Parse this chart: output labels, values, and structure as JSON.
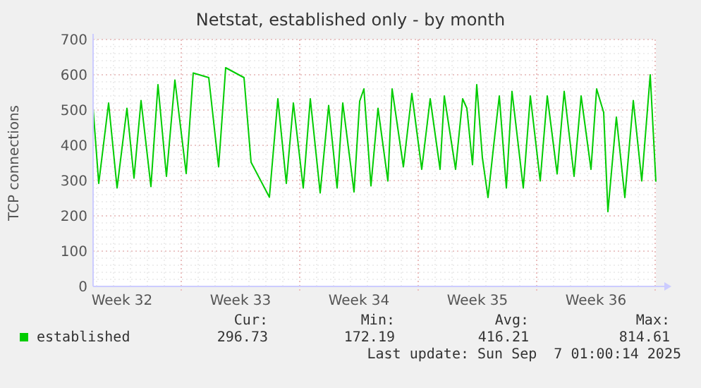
{
  "chart_data": {
    "type": "line",
    "title": "Netstat, established only - by month",
    "ylabel": "TCP connections",
    "x": [
      "2025-08-04T19:00",
      "2025-08-05T03:00",
      "2025-08-05T17:00",
      "2025-08-06T05:00",
      "2025-08-06T19:00",
      "2025-08-07T05:00",
      "2025-08-07T15:00",
      "2025-08-08T05:00",
      "2025-08-08T15:00",
      "2025-08-09T03:00",
      "2025-08-09T15:00",
      "2025-08-10T07:00",
      "2025-08-10T17:00",
      "2025-08-11T15:00",
      "2025-08-12T05:00",
      "2025-08-12T15:00",
      "2025-08-13T17:00",
      "2025-08-14T03:00",
      "2025-08-15T05:00",
      "2025-08-15T17:00",
      "2025-08-16T05:00",
      "2025-08-16T15:00",
      "2025-08-17T05:00",
      "2025-08-17T15:00",
      "2025-08-18T05:00",
      "2025-08-18T17:00",
      "2025-08-19T05:00",
      "2025-08-19T13:00",
      "2025-08-20T05:00",
      "2025-08-20T13:00",
      "2025-08-20T19:00",
      "2025-08-21T05:00",
      "2025-08-21T15:00",
      "2025-08-22T05:00",
      "2025-08-22T11:00",
      "2025-08-23T03:00",
      "2025-08-23T15:00",
      "2025-08-24T05:00",
      "2025-08-24T17:00",
      "2025-08-25T07:00",
      "2025-08-25T13:00",
      "2025-08-26T05:00",
      "2025-08-26T15:00",
      "2025-08-26T21:00",
      "2025-08-27T05:00",
      "2025-08-27T11:00",
      "2025-08-27T19:00",
      "2025-08-28T03:00",
      "2025-08-28T11:00",
      "2025-08-28T19:00",
      "2025-08-29T05:00",
      "2025-08-29T13:00",
      "2025-08-30T05:00",
      "2025-08-30T15:00",
      "2025-08-31T05:00",
      "2025-08-31T15:00",
      "2025-09-01T05:00",
      "2025-09-01T15:00",
      "2025-09-02T05:00",
      "2025-09-02T15:00",
      "2025-09-03T05:00",
      "2025-09-03T13:00",
      "2025-09-03T23:00",
      "2025-09-04T05:00",
      "2025-09-04T17:00",
      "2025-09-05T05:00",
      "2025-09-05T17:00",
      "2025-09-06T05:00",
      "2025-09-06T17:00",
      "2025-09-07T01:00"
    ],
    "series": [
      {
        "name": "established",
        "color": "#00cc00",
        "values": [
          505,
          292,
          520,
          279,
          505,
          307,
          527,
          283,
          572,
          312,
          585,
          320,
          605,
          592,
          339,
          620,
          592,
          352,
          253,
          532,
          292,
          520,
          279,
          532,
          265,
          513,
          279,
          520,
          268,
          525,
          560,
          285,
          505,
          299,
          560,
          339,
          547,
          332,
          532,
          332,
          540,
          332,
          532,
          505,
          345,
          572,
          365,
          252,
          399,
          540,
          279,
          553,
          279,
          540,
          299,
          540,
          319,
          553,
          312,
          540,
          332,
          560,
          493,
          212,
          480,
          252,
          527,
          299,
          600,
          297
        ]
      }
    ],
    "xlim": [
      "2025-08-04T19:00",
      "2025-09-07T01:00"
    ],
    "xticks": [
      {
        "value": "2025-08-06T12:00",
        "label": "Week 32"
      },
      {
        "value": "2025-08-13T12:00",
        "label": "Week 33"
      },
      {
        "value": "2025-08-20T12:00",
        "label": "Week 34"
      },
      {
        "value": "2025-08-27T12:00",
        "label": "Week 35"
      },
      {
        "value": "2025-09-03T12:00",
        "label": "Week 36"
      }
    ],
    "ylim": [
      0,
      700
    ],
    "yticks": [
      0,
      100,
      200,
      300,
      400,
      500,
      600,
      700
    ],
    "grid": true,
    "legend": "bottom left",
    "marker": "none",
    "line_style": "solid",
    "annotations": [
      "Cur:",
      "Min:",
      "Avg:",
      "Max:",
      "296.73",
      "172.19",
      "416.21",
      "814.61",
      "Last update: Sun Sep  7 01:00:14 2025"
    ]
  }
}
